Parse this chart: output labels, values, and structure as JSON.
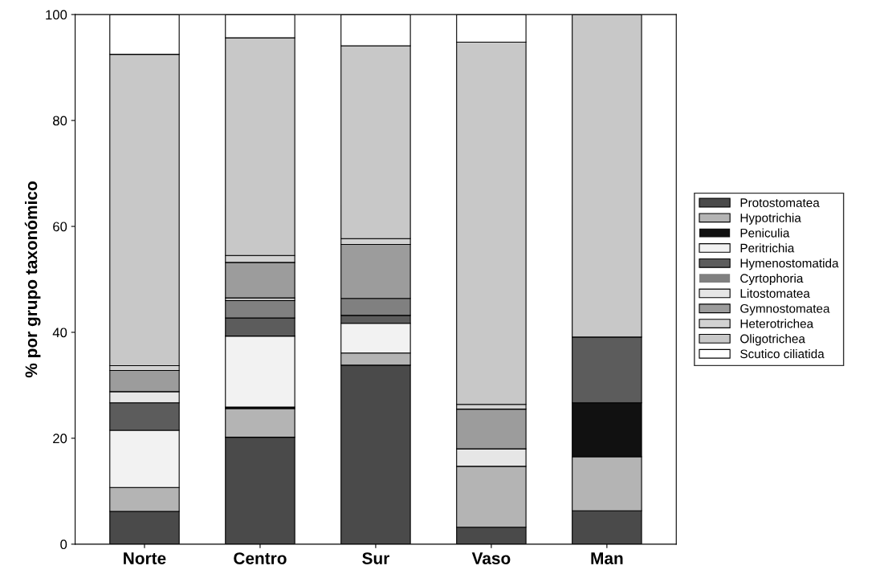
{
  "chart_data": {
    "type": "bar",
    "stacked": true,
    "ylabel": "% por grupo taxonómico",
    "categories": [
      "Norte",
      "Centro",
      "Sur",
      "Vaso",
      "Man"
    ],
    "series": [
      {
        "name": "Protostomatea",
        "color": "#4a4a4a",
        "values": [
          6.2,
          20.2,
          33.8,
          3.2,
          6.3
        ]
      },
      {
        "name": "Hypotrichia",
        "color": "#b4b4b4",
        "values": [
          4.5,
          5.4,
          2.3,
          11.5,
          10.2
        ]
      },
      {
        "name": "Peniculia",
        "color": "#111111",
        "values": [
          0,
          0.3,
          0,
          0,
          10.2
        ]
      },
      {
        "name": "Peritrichia",
        "color": "#f2f2f2",
        "values": [
          10.8,
          13.4,
          5.6,
          0,
          0
        ]
      },
      {
        "name": "Hymenostomatida",
        "color": "#5c5c5c",
        "values": [
          5.2,
          3.4,
          1.5,
          0,
          12.4
        ]
      },
      {
        "name": "Cyrtophoria",
        "color": "#808080",
        "values": [
          0,
          3.3,
          3.2,
          0,
          0
        ]
      },
      {
        "name": "Litostomatea",
        "color": "#e6e6e6",
        "values": [
          2.1,
          0.5,
          0,
          3.3,
          0
        ]
      },
      {
        "name": "Gymnostomatea",
        "color": "#9c9c9c",
        "values": [
          4.0,
          6.7,
          10.2,
          7.5,
          0
        ]
      },
      {
        "name": "Heterotrichea",
        "color": "#d2d2d2",
        "values": [
          0.9,
          1.3,
          1.1,
          0.9,
          0
        ]
      },
      {
        "name": "Oligotrichea",
        "color": "#c8c8c8",
        "values": [
          58.8,
          41.1,
          36.4,
          68.4,
          60.9
        ]
      },
      {
        "name": "Scutico ciliatida",
        "color": "#ffffff",
        "values": [
          7.5,
          4.4,
          5.9,
          5.2,
          0
        ]
      }
    ],
    "ylim": [
      0,
      100
    ],
    "yticks": [
      0,
      20,
      40,
      60,
      80,
      100
    ],
    "grid": false,
    "legend": "right"
  }
}
